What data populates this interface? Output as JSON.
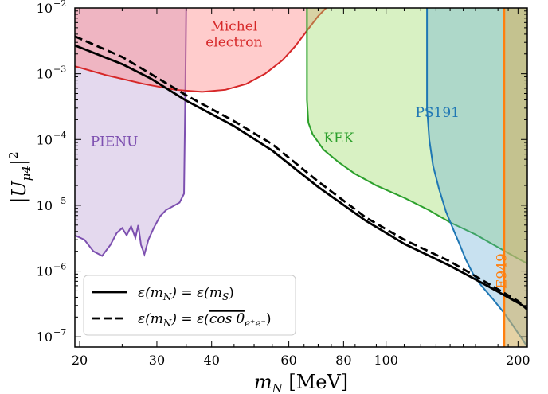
{
  "chart_data": {
    "type": "area",
    "title": "",
    "xlabel": "m_N [MeV]",
    "ylabel": "|U_μ4|²",
    "xscale": "log",
    "yscale": "log",
    "xlim": [
      19.5,
      210
    ],
    "ylim": [
      7e-08,
      0.01
    ],
    "x_ticks": [
      20,
      30,
      40,
      60,
      80,
      100,
      200
    ],
    "x_tick_labels": [
      "20",
      "30",
      "40",
      "60",
      "80",
      "100",
      "200"
    ],
    "y_ticks": [
      1e-07,
      1e-06,
      1e-05,
      0.0001,
      0.001,
      0.01
    ],
    "y_tick_labels": [
      {
        "base": "10",
        "exp": "−7"
      },
      {
        "base": "10",
        "exp": "−6"
      },
      {
        "base": "10",
        "exp": "−5"
      },
      {
        "base": "10",
        "exp": "−4"
      },
      {
        "base": "10",
        "exp": "−3"
      },
      {
        "base": "10",
        "exp": "−2"
      }
    ],
    "grid": false,
    "regions": [
      {
        "name": "PIENU",
        "label": "PIENU",
        "fill": "#9467bd",
        "edge": "#7d50b0",
        "alpha": 0.25,
        "label_at": [
          24,
          8e-05
        ],
        "boundary": [
          [
            19.5,
            3.5e-06
          ],
          [
            20.5,
            3e-06
          ],
          [
            21.5,
            2e-06
          ],
          [
            22.5,
            1.7e-06
          ],
          [
            23.5,
            2.5e-06
          ],
          [
            24.3,
            3.8e-06
          ],
          [
            25,
            4.5e-06
          ],
          [
            25.6,
            3.5e-06
          ],
          [
            26.2,
            4.8e-06
          ],
          [
            26.8,
            3.2e-06
          ],
          [
            27.2,
            5e-06
          ],
          [
            27.6,
            2.5e-06
          ],
          [
            28.1,
            1.8e-06
          ],
          [
            28.7,
            3e-06
          ],
          [
            29.5,
            4.5e-06
          ],
          [
            30.5,
            6.8e-06
          ],
          [
            31.5,
            8.5e-06
          ],
          [
            32.5,
            9.5e-06
          ],
          [
            33.8,
            1.1e-05
          ],
          [
            34.6,
            1.5e-05
          ],
          [
            34.8,
            0.0003
          ],
          [
            35,
            0.01
          ]
        ]
      },
      {
        "name": "Michel electron",
        "label": "Michel",
        "label2": "electron",
        "fill": "#ff7f7f",
        "edge": "#d62728",
        "alpha": 0.4,
        "label_at": [
          45,
          0.0045
        ],
        "boundary": [
          [
            19.5,
            0.0013
          ],
          [
            23,
            0.00095
          ],
          [
            28,
            0.0007
          ],
          [
            33,
            0.00057
          ],
          [
            38,
            0.00053
          ],
          [
            43,
            0.00057
          ],
          [
            48,
            0.0007
          ],
          [
            53,
            0.001
          ],
          [
            58,
            0.0016
          ],
          [
            62,
            0.0026
          ],
          [
            66,
            0.0045
          ],
          [
            70,
            0.0075
          ],
          [
            73,
            0.01
          ]
        ]
      },
      {
        "name": "KEK",
        "label": "KEK",
        "fill": "#9edb6a",
        "edge": "#2ca02c",
        "alpha": 0.4,
        "label_at": [
          78,
          9e-05
        ],
        "boundary": [
          [
            66,
            0.01
          ],
          [
            66,
            0.0004
          ],
          [
            66.5,
            0.00018
          ],
          [
            68,
            0.00012
          ],
          [
            72,
            7e-05
          ],
          [
            78,
            4.5e-05
          ],
          [
            85,
            3e-05
          ],
          [
            95,
            2e-05
          ],
          [
            110,
            1.3e-05
          ],
          [
            125,
            8.5e-06
          ],
          [
            140,
            5.5e-06
          ],
          [
            160,
            3.6e-06
          ],
          [
            180,
            2.3e-06
          ],
          [
            200,
            1.55e-06
          ],
          [
            210,
            1.3e-06
          ]
        ]
      },
      {
        "name": "PS191",
        "label": "PS191",
        "fill": "#62a8d4",
        "edge": "#1f77b4",
        "alpha": 0.35,
        "label_at": [
          131,
          0.00022
        ],
        "boundary": [
          [
            124,
            0.01
          ],
          [
            124,
            0.0003
          ],
          [
            125.5,
            0.0001
          ],
          [
            128,
            4e-05
          ],
          [
            132,
            1.8e-05
          ],
          [
            137,
            8e-06
          ],
          [
            143,
            4e-06
          ],
          [
            147,
            2.6e-06
          ],
          [
            152,
            1.5e-06
          ],
          [
            158,
            9e-07
          ],
          [
            165,
            6e-07
          ],
          [
            175,
            3.8e-07
          ],
          [
            186,
            2.3e-07
          ],
          [
            196,
            1.4e-07
          ],
          [
            205,
            9e-08
          ],
          [
            210,
            7e-08
          ]
        ]
      },
      {
        "name": "E949",
        "label": "E949",
        "fill": "#d2b469",
        "edge": "#ff7f0e",
        "alpha": 0.6,
        "label_at": [
          188,
          1e-06
        ],
        "x_min": 186
      }
    ],
    "series": [
      {
        "name": "ε(m_N) = ε(m_S)",
        "style": "solid",
        "color": "#000000",
        "x": [
          19.5,
          25,
          29,
          35,
          45,
          55,
          70,
          90,
          110,
          140,
          170,
          200,
          210
        ],
        "y": [
          0.0027,
          0.0014,
          0.00085,
          0.00039,
          0.00016,
          6.8e-05,
          1.9e-05,
          5.8e-06,
          2.6e-06,
          1.2e-06,
          6e-07,
          3.3e-07,
          2.7e-07
        ]
      },
      {
        "name": "ε(m_N) = ε(cos θ_e+e−)",
        "style": "dashed",
        "color": "#000000",
        "x": [
          19.5,
          25,
          29,
          35,
          45,
          55,
          70,
          90,
          110,
          140,
          170,
          200,
          210
        ],
        "y": [
          0.0037,
          0.0018,
          0.001,
          0.00047,
          0.00019,
          8.5e-05,
          2.3e-05,
          6.5e-06,
          3e-06,
          1.4e-06,
          6.6e-07,
          3.5e-07,
          2.6e-07
        ]
      }
    ],
    "legend": {
      "placement": "lower-left",
      "entries": [
        {
          "style": "solid",
          "lhs": "ε(m",
          "sub": "N",
          "mid": ") = ε(m",
          "sub2": "S",
          "end": ")"
        },
        {
          "style": "dashed",
          "lhs": "ε(m",
          "sub": "N",
          "mid": ") = ε(",
          "over": "cos θ",
          "sub2": "e⁺e⁻",
          "end": ")"
        }
      ]
    }
  }
}
